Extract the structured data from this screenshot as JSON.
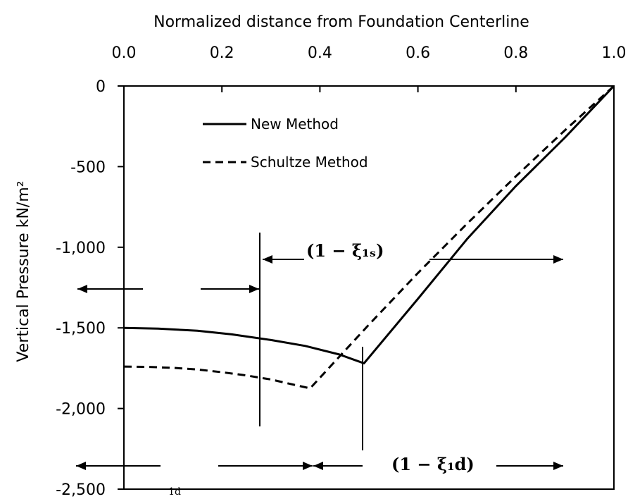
{
  "chart_data": {
    "type": "line",
    "title": "",
    "xlabel": "Normalized distance from Foundation Centerline",
    "ylabel": "Vertical Pressure kN/m²",
    "xlim": [
      0.0,
      1.0
    ],
    "ylim": [
      -2500,
      0
    ],
    "x_axis_position": "top",
    "x_ticks": [
      0.0,
      0.2,
      0.4,
      0.6,
      0.8,
      1.0
    ],
    "x_tick_labels": [
      "0.0",
      "0.2",
      "0.4",
      "0.6",
      "0.8",
      "1.0"
    ],
    "y_ticks": [
      0,
      -500,
      -1000,
      -1500,
      -2000,
      -2500
    ],
    "y_tick_labels": [
      "0",
      "-500",
      "-1,000",
      "-1,500",
      "-2,000",
      "-2,500"
    ],
    "grid": false,
    "legend_position": "top-left",
    "series": [
      {
        "name": "New Method",
        "style": "solid",
        "color": "#000000",
        "x": [
          0.0,
          0.07,
          0.15,
          0.22,
          0.3,
          0.37,
          0.44,
          0.49,
          0.6,
          0.7,
          0.8,
          0.9,
          1.0
        ],
        "y": [
          -1500,
          -1505,
          -1518,
          -1540,
          -1575,
          -1612,
          -1665,
          -1720,
          -1320,
          -950,
          -620,
          -320,
          0
        ]
      },
      {
        "name": "Schultze Method",
        "style": "dashed",
        "color": "#000000",
        "x": [
          0.0,
          0.05,
          0.1,
          0.15,
          0.2,
          0.25,
          0.3,
          0.35,
          0.38,
          0.5,
          0.6,
          0.7,
          0.8,
          0.9,
          1.0
        ],
        "y": [
          -1740,
          -1742,
          -1748,
          -1758,
          -1775,
          -1795,
          -1820,
          -1855,
          -1875,
          -1480,
          -1160,
          -855,
          -560,
          -275,
          0
        ]
      }
    ],
    "annotations": [
      {
        "label": "(1 − ξ₁ₛ)"
      },
      {
        "label": "(1 − ξ₁d)"
      },
      {
        "label": "1d"
      }
    ]
  }
}
